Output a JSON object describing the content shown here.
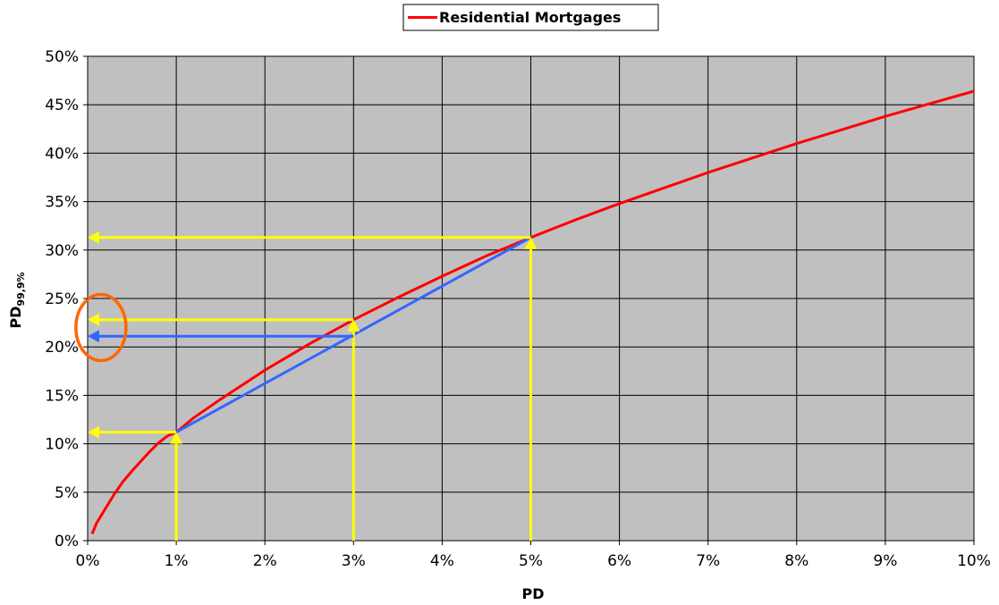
{
  "chart_data": {
    "type": "line",
    "xlabel": "PD",
    "ylabel_main": "PD",
    "ylabel_sub": "99,9%",
    "xlim": [
      0,
      0.1
    ],
    "ylim": [
      0,
      0.5
    ],
    "x_ticks": [
      0,
      0.01,
      0.02,
      0.03,
      0.04,
      0.05,
      0.06,
      0.07,
      0.08,
      0.09,
      0.1
    ],
    "x_tick_labels": [
      "0%",
      "1%",
      "2%",
      "3%",
      "4%",
      "5%",
      "6%",
      "7%",
      "8%",
      "9%",
      "10%"
    ],
    "y_ticks": [
      0,
      0.05,
      0.1,
      0.15,
      0.2,
      0.25,
      0.3,
      0.35,
      0.4,
      0.45,
      0.5
    ],
    "y_tick_labels": [
      "0%",
      "5%",
      "10%",
      "15%",
      "20%",
      "25%",
      "30%",
      "35%",
      "40%",
      "45%",
      "50%"
    ],
    "grid": true,
    "legend_position": "top-center",
    "plot_background": "#c0c0c0",
    "series": [
      {
        "name": "Residential Mortgages",
        "color": "#ff0000",
        "x": [
          0.0005,
          0.001,
          0.002,
          0.003,
          0.004,
          0.005,
          0.006,
          0.007,
          0.008,
          0.009,
          0.01,
          0.012,
          0.015,
          0.02,
          0.025,
          0.03,
          0.035,
          0.04,
          0.045,
          0.05,
          0.055,
          0.06,
          0.065,
          0.07,
          0.075,
          0.08,
          0.085,
          0.09,
          0.095,
          0.1
        ],
        "y": [
          0.007,
          0.018,
          0.033,
          0.048,
          0.061,
          0.072,
          0.082,
          0.092,
          0.101,
          0.108,
          0.112,
          0.127,
          0.146,
          0.176,
          0.203,
          0.228,
          0.251,
          0.273,
          0.294,
          0.313,
          0.331,
          0.348,
          0.364,
          0.38,
          0.395,
          0.41,
          0.424,
          0.438,
          0.451,
          0.464
        ]
      }
    ],
    "annotations": {
      "chord": {
        "color": "#3366ff",
        "from": [
          0.01,
          0.112
        ],
        "to": [
          0.05,
          0.313
        ]
      },
      "chord_arrow": {
        "color": "#3366ff",
        "from": [
          0.03,
          0.211
        ],
        "to": [
          0.0,
          0.211
        ]
      },
      "yellow_arrows": {
        "color": "#ffff00",
        "items": [
          {
            "from": [
              0.01,
              0.0
            ],
            "to": [
              0.01,
              0.112
            ]
          },
          {
            "from": [
              0.03,
              0.0
            ],
            "to": [
              0.03,
              0.228
            ]
          },
          {
            "from": [
              0.05,
              0.0
            ],
            "to": [
              0.05,
              0.313
            ]
          },
          {
            "from": [
              0.01,
              0.112
            ],
            "to": [
              0.0,
              0.112
            ]
          },
          {
            "from": [
              0.03,
              0.228
            ],
            "to": [
              0.0,
              0.228
            ]
          },
          {
            "from": [
              0.05,
              0.313
            ],
            "to": [
              0.0,
              0.313
            ]
          }
        ]
      },
      "highlight_ellipse": {
        "color": "#ff6600",
        "center": [
          0.0015,
          0.22
        ]
      }
    }
  }
}
